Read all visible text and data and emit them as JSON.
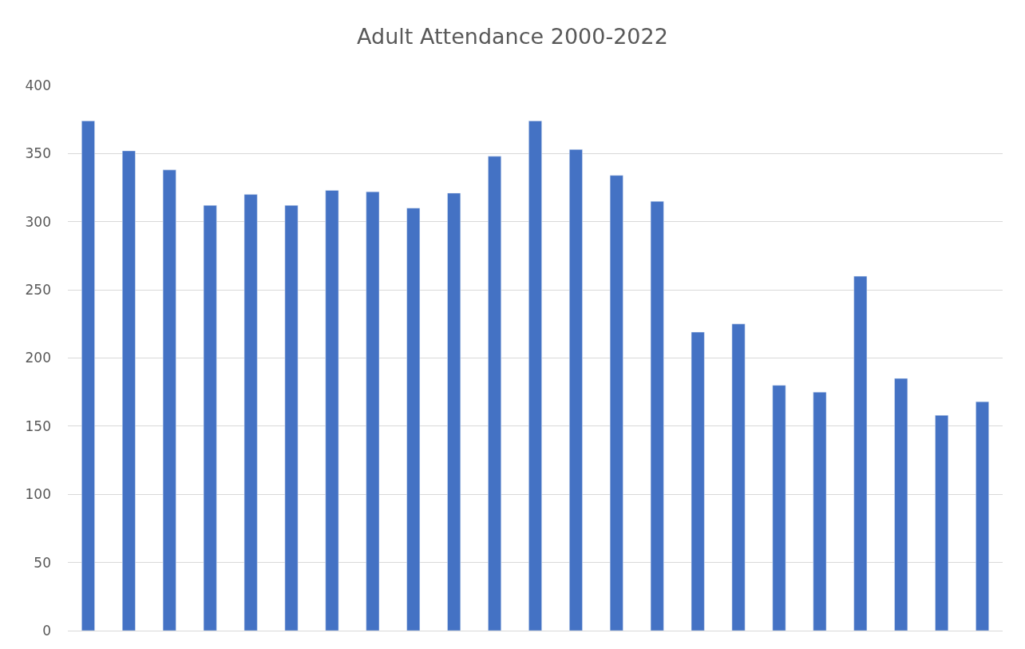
{
  "chart_data": {
    "type": "bar",
    "title": "Adult Attendance 2000-2022",
    "categories": [
      null,
      null,
      null,
      null,
      null,
      null,
      null,
      null,
      null,
      null,
      null,
      null,
      null,
      null,
      null,
      null,
      null,
      null,
      null,
      null,
      null,
      null,
      null
    ],
    "values": [
      374,
      352,
      338,
      312,
      320,
      312,
      323,
      322,
      310,
      321,
      348,
      374,
      353,
      334,
      315,
      219,
      225,
      180,
      175,
      260,
      185,
      158,
      168
    ],
    "color": "#4472c4",
    "ylim": [
      0,
      400
    ],
    "yticks": [
      0,
      50,
      100,
      150,
      200,
      250,
      300,
      350,
      400
    ],
    "grid": "y",
    "tick_labels": "y"
  }
}
